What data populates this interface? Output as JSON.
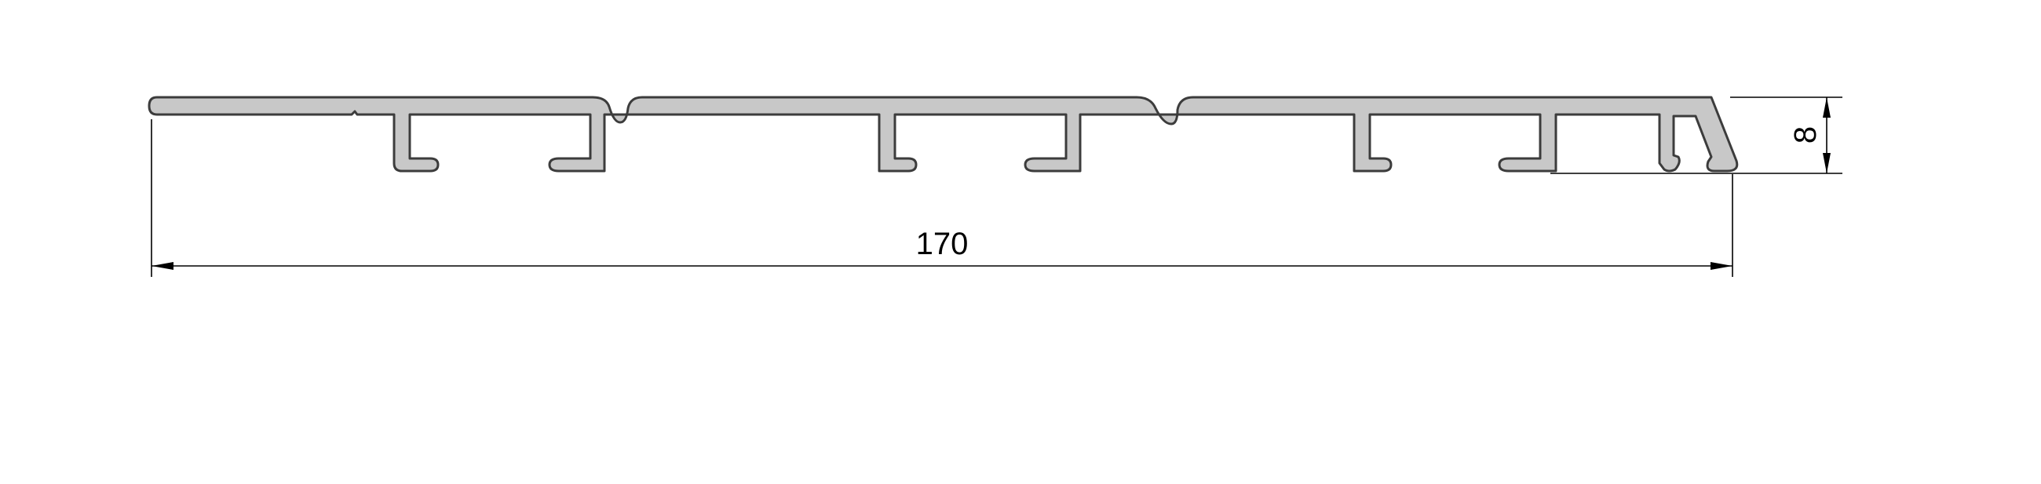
{
  "drawing": {
    "width_dimension": "170",
    "height_dimension": "8",
    "profile_fill": "#c8c8c8",
    "profile_stroke": "#3c3c3c"
  }
}
